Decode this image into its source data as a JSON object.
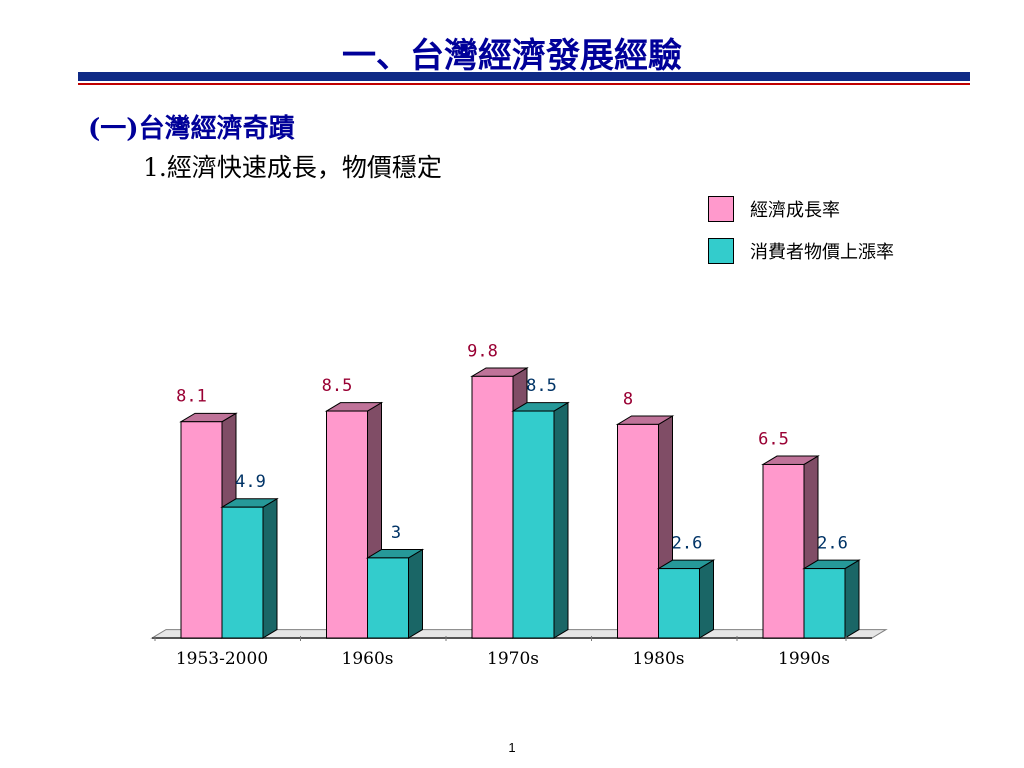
{
  "slide": {
    "title": "一、台灣經濟發展經驗",
    "section": "(一)台灣經濟奇蹟",
    "subsection": "1.經濟快速成長，物價穩定",
    "page_number": "1"
  },
  "colors": {
    "title": "#000099",
    "rule": "#0f2a86",
    "rule_accent": "#c00000",
    "series_1": "#ff99cc",
    "series_2": "#33cccc",
    "label_1": "#990033",
    "label_2": "#003366"
  },
  "chart_data": {
    "type": "bar",
    "categories": [
      "1953-2000",
      "1960s",
      "1970s",
      "1980s",
      "1990s"
    ],
    "series": [
      {
        "name": "經濟成長率",
        "values": [
          8.1,
          8.5,
          9.8,
          8,
          6.5
        ],
        "labels": [
          "8.1",
          "8.5",
          "9.8",
          "8",
          "6.5"
        ],
        "color": "#ff99cc"
      },
      {
        "name": "消費者物價上漲率",
        "values": [
          4.9,
          3,
          8.5,
          2.6,
          2.6
        ],
        "labels": [
          "4.9",
          "3",
          "8.5",
          "2.6",
          "2.6"
        ],
        "color": "#33cccc"
      }
    ],
    "ylim": [
      0,
      10
    ],
    "grid": false,
    "legend_position": "top-right",
    "style": "3d-clustered-column",
    "xlabel": "",
    "ylabel": ""
  }
}
